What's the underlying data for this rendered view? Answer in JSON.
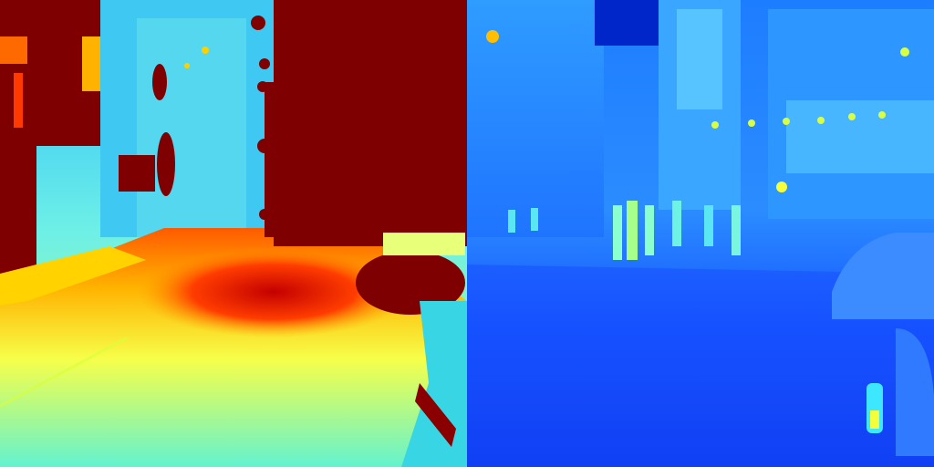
{
  "image": {
    "panels": [
      {
        "id": "left",
        "description_colormap": "jet",
        "dominant_colors": [
          "#7f0000",
          "#ff3a00",
          "#ffd600",
          "#3de8e0",
          "#1ea6ff"
        ]
      },
      {
        "id": "right",
        "description_colormap": "jet",
        "dominant_colors": [
          "#0033ff",
          "#1a6cff",
          "#2fa8ff",
          "#a8ff4a",
          "#ffee22"
        ]
      }
    ]
  }
}
